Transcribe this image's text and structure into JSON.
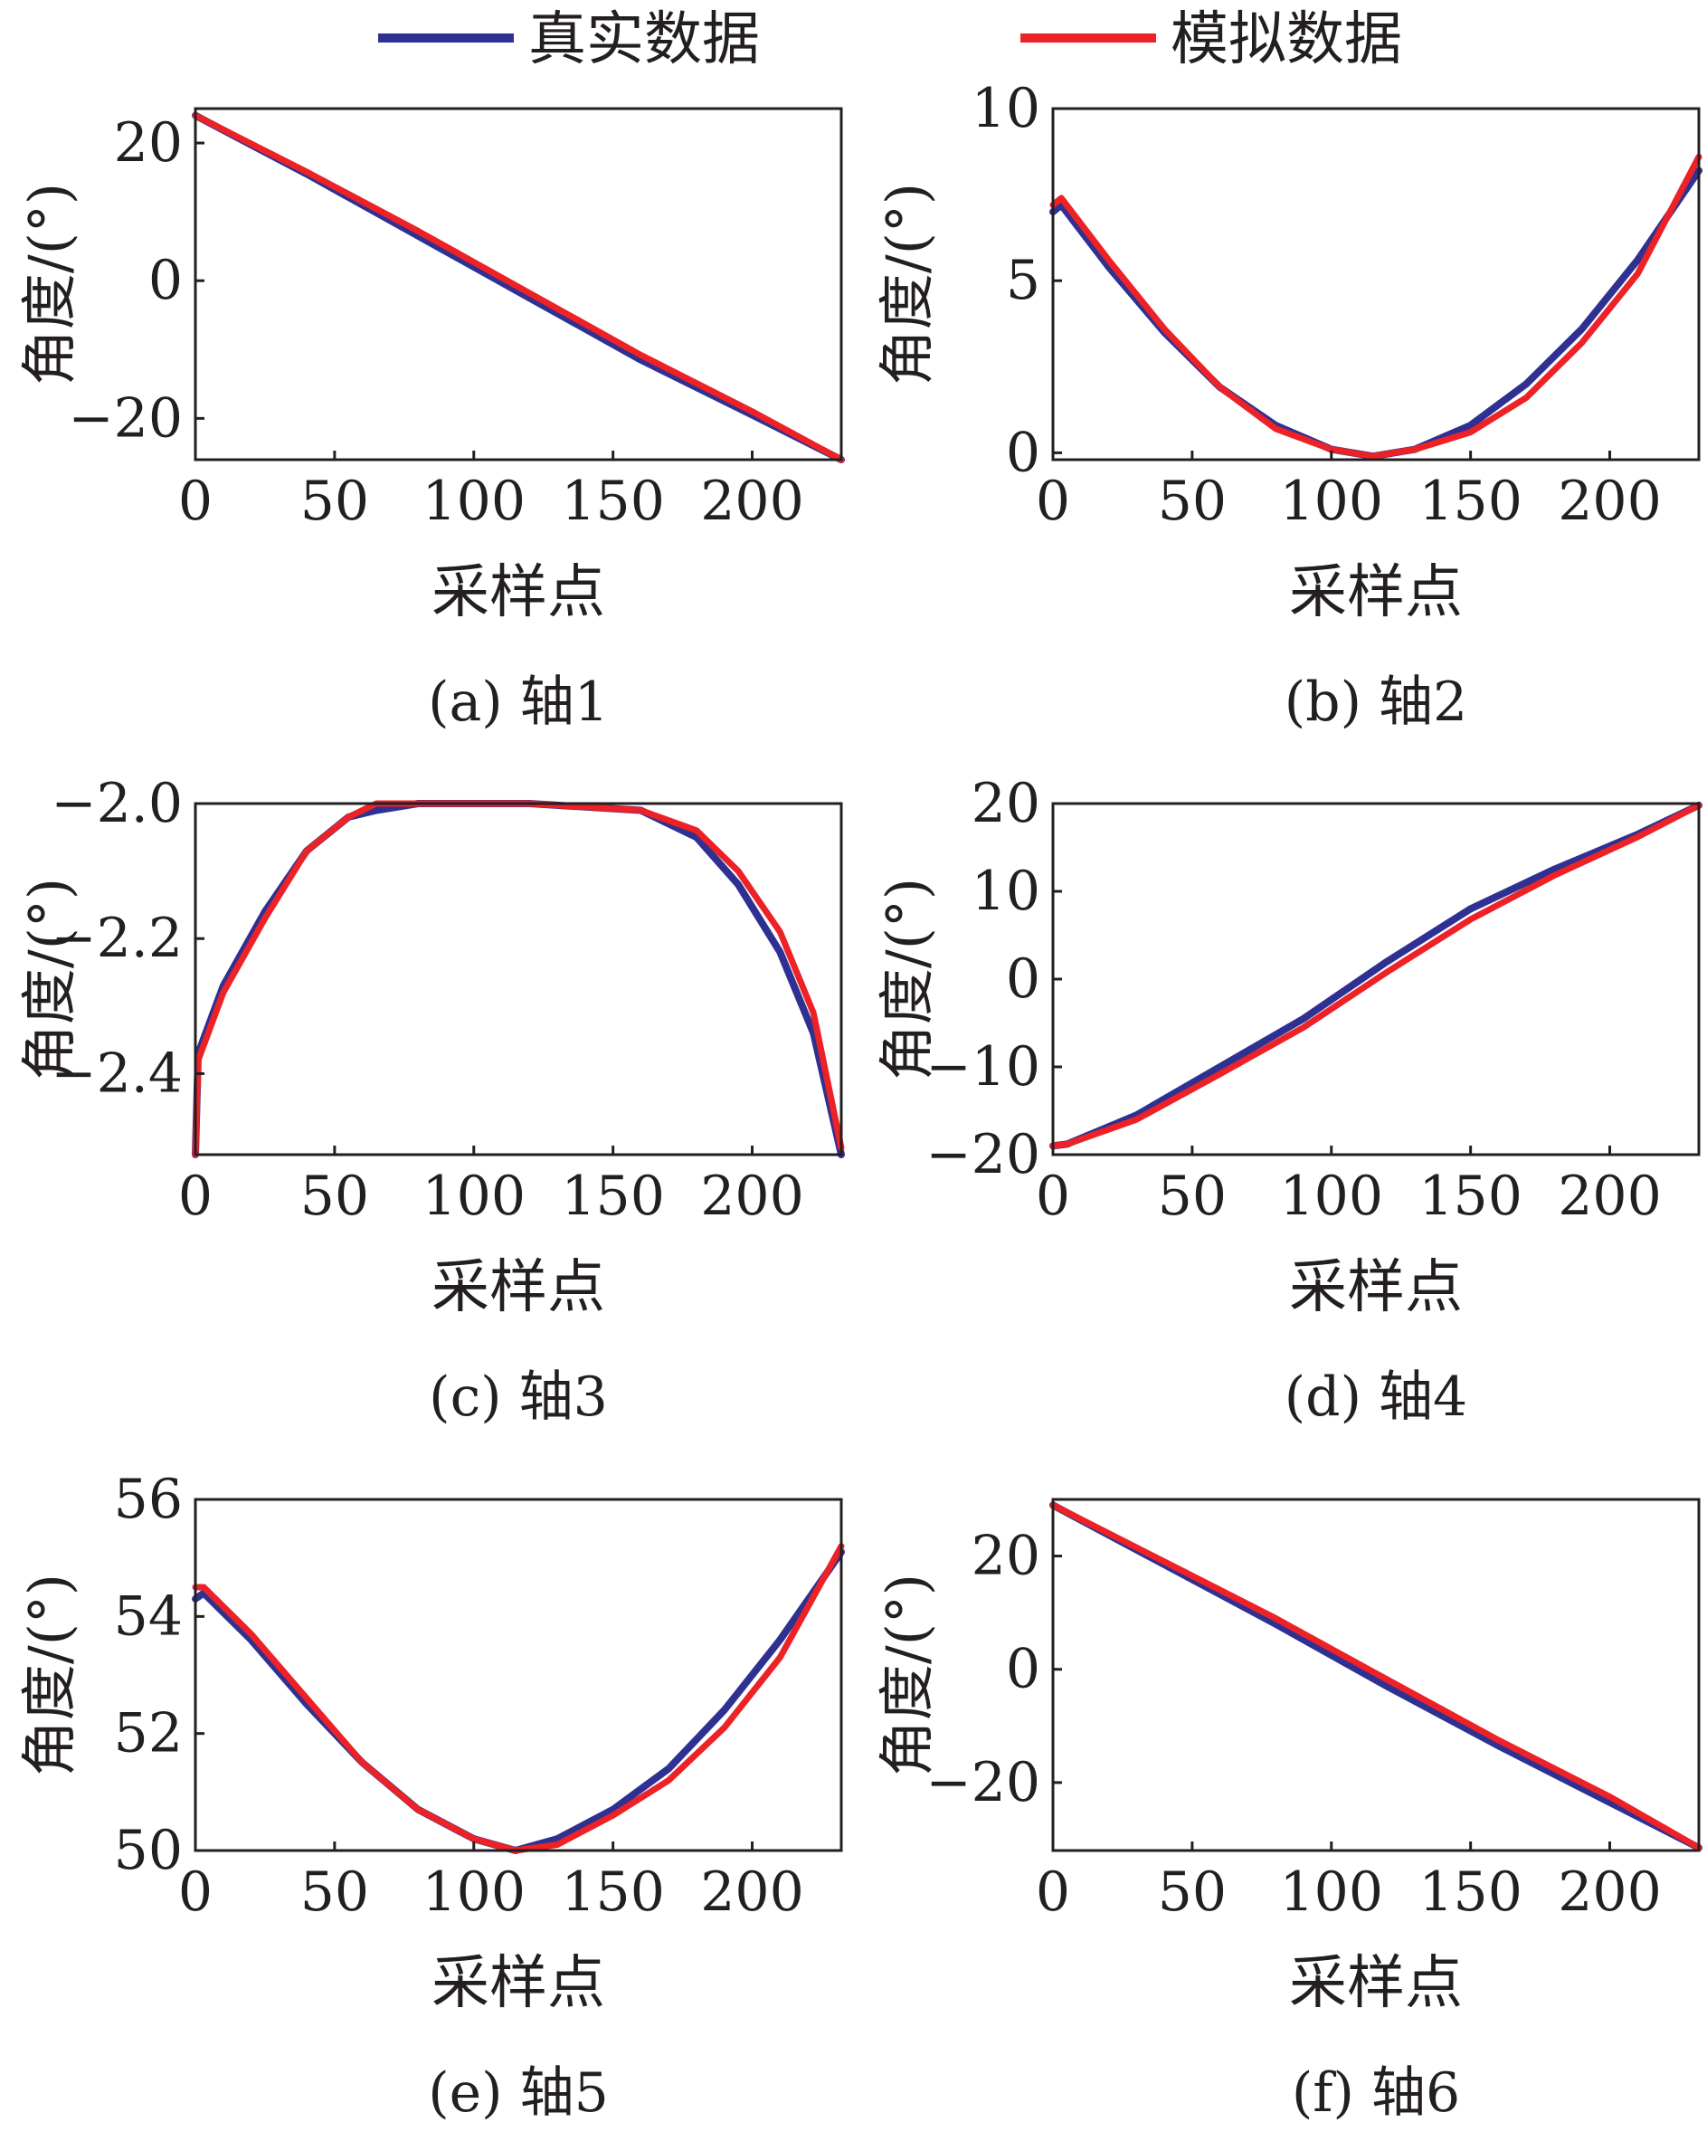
{
  "legend": {
    "entries": [
      {
        "label": "真实数据",
        "color": "#2e3192"
      },
      {
        "label": "模拟数据",
        "color": "#ec2227"
      }
    ]
  },
  "chart_data": [
    {
      "type": "line",
      "caption": "(a) 轴1",
      "xlabel": "采样点",
      "ylabel": "角度/(°)",
      "xlim": [
        0,
        232
      ],
      "ylim": [
        -26,
        25
      ],
      "xticks": [
        0,
        50,
        100,
        150,
        200
      ],
      "yticks": [
        20,
        0,
        -20
      ],
      "ytick_labels": [
        "20",
        "0",
        "−20"
      ],
      "series": [
        {
          "name": "真实数据",
          "color": "#2e3192",
          "x": [
            0,
            40,
            80,
            120,
            160,
            200,
            232
          ],
          "y": [
            24,
            15.5,
            6.5,
            -2.5,
            -11.5,
            -19.5,
            -26
          ]
        },
        {
          "name": "模拟数据",
          "color": "#ec2227",
          "x": [
            0,
            40,
            80,
            120,
            160,
            200,
            232
          ],
          "y": [
            24,
            15.8,
            7.2,
            -1.8,
            -10.8,
            -19,
            -26
          ]
        }
      ]
    },
    {
      "type": "line",
      "caption": "(b) 轴2",
      "xlabel": "采样点",
      "ylabel": "角度/(°)",
      "xlim": [
        0,
        232
      ],
      "ylim": [
        -0.2,
        10
      ],
      "xticks": [
        0,
        50,
        100,
        150,
        200
      ],
      "yticks": [
        10,
        5,
        0
      ],
      "ytick_labels": [
        "10",
        "5",
        "0"
      ],
      "series": [
        {
          "name": "真实数据",
          "color": "#2e3192",
          "x": [
            0,
            3,
            20,
            40,
            60,
            80,
            100,
            115,
            130,
            150,
            170,
            190,
            210,
            232
          ],
          "y": [
            7,
            7.2,
            5.4,
            3.5,
            1.9,
            0.8,
            0.1,
            -0.1,
            0.1,
            0.8,
            2,
            3.6,
            5.6,
            8.2
          ]
        },
        {
          "name": "模拟数据",
          "color": "#ec2227",
          "x": [
            0,
            3,
            20,
            40,
            60,
            80,
            100,
            115,
            130,
            150,
            170,
            190,
            210,
            232
          ],
          "y": [
            7.2,
            7.4,
            5.6,
            3.6,
            1.9,
            0.7,
            0.1,
            -0.1,
            0.1,
            0.6,
            1.6,
            3.2,
            5.2,
            8.6
          ]
        }
      ]
    },
    {
      "type": "line",
      "caption": "(c) 轴3",
      "xlabel": "采样点",
      "ylabel": "角度/(°)",
      "xlim": [
        0,
        232
      ],
      "ylim": [
        -2.52,
        -2.0
      ],
      "xticks": [
        0,
        50,
        100,
        150,
        200
      ],
      "yticks": [
        -2.0,
        -2.2,
        -2.4
      ],
      "ytick_labels": [
        "−2.0",
        "−2.2",
        "−2.4"
      ],
      "series": [
        {
          "name": "真实数据",
          "color": "#2e3192",
          "x": [
            0,
            1,
            10,
            25,
            40,
            55,
            65,
            80,
            120,
            160,
            180,
            195,
            210,
            222,
            232
          ],
          "y": [
            -2.52,
            -2.37,
            -2.27,
            -2.16,
            -2.07,
            -2.02,
            -2.01,
            -2.0,
            -2.0,
            -2.01,
            -2.05,
            -2.12,
            -2.22,
            -2.34,
            -2.52
          ]
        },
        {
          "name": "模拟数据",
          "color": "#ec2227",
          "x": [
            0,
            1,
            10,
            25,
            40,
            55,
            65,
            80,
            120,
            160,
            180,
            195,
            210,
            222,
            232
          ],
          "y": [
            -2.52,
            -2.38,
            -2.28,
            -2.17,
            -2.07,
            -2.02,
            -2.0,
            -2.0,
            -2.0,
            -2.01,
            -2.04,
            -2.1,
            -2.19,
            -2.31,
            -2.51
          ]
        }
      ]
    },
    {
      "type": "line",
      "caption": "(d) 轴4",
      "xlabel": "采样点",
      "ylabel": "角度/(°)",
      "xlim": [
        0,
        232
      ],
      "ylim": [
        -20,
        20
      ],
      "xticks": [
        0,
        50,
        100,
        150,
        200
      ],
      "yticks": [
        20,
        10,
        0,
        -10,
        -20
      ],
      "ytick_labels": [
        "20",
        "10",
        "0",
        "−10",
        "−20"
      ],
      "series": [
        {
          "name": "真实数据",
          "color": "#2e3192",
          "x": [
            0,
            5,
            30,
            60,
            90,
            120,
            150,
            180,
            210,
            232
          ],
          "y": [
            -19,
            -18.8,
            -15.5,
            -10,
            -4.5,
            2,
            8,
            12.5,
            16.5,
            19.8
          ]
        },
        {
          "name": "模拟数据",
          "color": "#ec2227",
          "x": [
            0,
            5,
            30,
            60,
            90,
            120,
            150,
            180,
            210,
            232
          ],
          "y": [
            -19,
            -18.8,
            -16,
            -10.8,
            -5.5,
            0.8,
            6.8,
            11.8,
            16.2,
            19.8
          ]
        }
      ]
    },
    {
      "type": "line",
      "caption": "(e) 轴5",
      "xlabel": "采样点",
      "ylabel": "角度/(°)",
      "xlim": [
        0,
        232
      ],
      "ylim": [
        50,
        56
      ],
      "xticks": [
        0,
        50,
        100,
        150,
        200
      ],
      "yticks": [
        56,
        54,
        52,
        50
      ],
      "ytick_labels": [
        "56",
        "54",
        "52",
        "50"
      ],
      "series": [
        {
          "name": "真实数据",
          "color": "#2e3192",
          "x": [
            0,
            3,
            20,
            40,
            60,
            80,
            100,
            115,
            130,
            150,
            170,
            190,
            210,
            232
          ],
          "y": [
            54.3,
            54.4,
            53.6,
            52.5,
            51.5,
            50.7,
            50.2,
            50.0,
            50.2,
            50.7,
            51.4,
            52.4,
            53.6,
            55.1
          ]
        },
        {
          "name": "模拟数据",
          "color": "#ec2227",
          "x": [
            0,
            3,
            20,
            40,
            60,
            80,
            100,
            115,
            130,
            150,
            170,
            190,
            210,
            232
          ],
          "y": [
            54.5,
            54.5,
            53.7,
            52.6,
            51.5,
            50.7,
            50.2,
            50.0,
            50.1,
            50.6,
            51.2,
            52.1,
            53.3,
            55.2
          ]
        }
      ]
    },
    {
      "type": "line",
      "caption": "(f) 轴6",
      "xlabel": "采样点",
      "ylabel": "角度/(°)",
      "xlim": [
        0,
        232
      ],
      "ylim": [
        -32,
        30
      ],
      "xticks": [
        0,
        50,
        100,
        150,
        200
      ],
      "yticks": [
        20,
        0,
        -20
      ],
      "ytick_labels": [
        "20",
        "0",
        "−20"
      ],
      "series": [
        {
          "name": "真实数据",
          "color": "#2e3192",
          "x": [
            0,
            40,
            80,
            120,
            160,
            200,
            232
          ],
          "y": [
            29,
            18.5,
            8,
            -3,
            -13.5,
            -23.5,
            -31.5
          ]
        },
        {
          "name": "模拟数据",
          "color": "#ec2227",
          "x": [
            0,
            40,
            80,
            120,
            160,
            200,
            232
          ],
          "y": [
            29,
            19,
            9,
            -1.8,
            -12.5,
            -22.5,
            -31.5
          ]
        }
      ]
    }
  ]
}
